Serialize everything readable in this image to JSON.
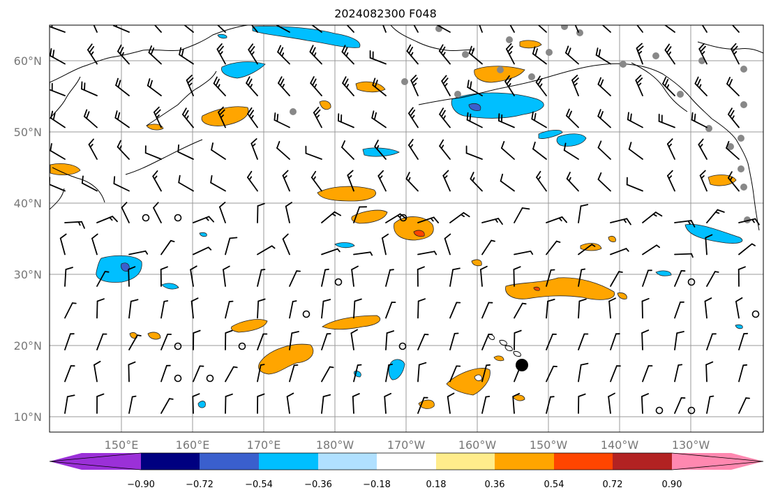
{
  "title": "2024082300 F048",
  "lat_labels": [
    "60°N",
    "50°N",
    "40°N",
    "30°N",
    "20°N",
    "10°N"
  ],
  "lon_labels": [
    "150°E",
    "160°E",
    "170°E",
    "180°W",
    "170°W",
    "160°W",
    "150°W",
    "140°W",
    "130°W"
  ],
  "colorbar": {
    "ticks": [
      "−0.90",
      "−0.72",
      "−0.54",
      "−0.36",
      "−0.18",
      "0.18",
      "0.36",
      "0.54",
      "0.72",
      "0.90"
    ],
    "colors": [
      "#9b30d8",
      "#000080",
      "#3a5fcd",
      "#00bfff",
      "#b0e0ff",
      "#ffffff",
      "#ffec8b",
      "#ffa500",
      "#ff4500",
      "#b22222",
      "#ff88b0"
    ]
  },
  "field_colors": {
    "positive_light": "#ffa500",
    "positive_strong": "#ff4500",
    "negative_light": "#00bfff",
    "negative_strong": "#3a5fcd"
  }
}
